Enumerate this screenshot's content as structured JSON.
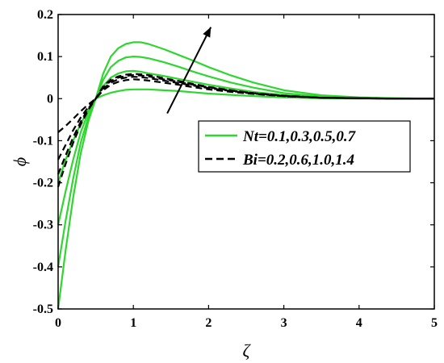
{
  "chart_data": {
    "type": "line",
    "title": "",
    "xlabel": "ζ",
    "ylabel": "ϕ",
    "xlim": [
      0,
      5
    ],
    "ylim": [
      -0.5,
      0.2
    ],
    "xticks": [
      "0",
      "1",
      "2",
      "3",
      "4",
      "5"
    ],
    "yticks": [
      "0.2",
      "0.1",
      "0",
      "-0.1",
      "-0.2",
      "-0.3",
      "-0.4",
      "-0.5"
    ],
    "grid": false,
    "legend_position": "middle-right",
    "legend": [
      {
        "label": "Nt=0.1,0.3,0.5,0.7",
        "color": "#2fd62f",
        "dash": "solid"
      },
      {
        "label": "Bi=0.2,0.6,1.0,1.4",
        "color": "#000000",
        "dash": "dashed"
      }
    ],
    "annotation": "arrow indicating increasing parameter direction",
    "series": [
      {
        "group": "Nt",
        "color": "#2fd62f",
        "dash": "solid",
        "x": [
          0,
          0.1,
          0.2,
          0.3,
          0.4,
          0.5,
          0.6,
          0.7,
          0.8,
          0.9,
          1.0,
          1.1,
          1.2,
          1.4,
          1.6,
          1.8,
          2.0,
          2.3,
          2.6,
          3.0,
          3.5,
          4.0,
          4.5,
          5.0
        ],
        "y": [
          -0.2,
          -0.145,
          -0.1,
          -0.06,
          -0.027,
          0,
          0.008,
          0.014,
          0.018,
          0.021,
          0.022,
          0.022,
          0.022,
          0.02,
          0.018,
          0.015,
          0.012,
          0.009,
          0.006,
          0.003,
          0.001,
          0.0,
          0.0,
          0
        ]
      },
      {
        "group": "Nt",
        "color": "#2fd62f",
        "dash": "solid",
        "x": [
          0,
          0.1,
          0.2,
          0.3,
          0.4,
          0.5,
          0.6,
          0.7,
          0.8,
          0.9,
          1.0,
          1.1,
          1.2,
          1.4,
          1.6,
          1.8,
          2.0,
          2.3,
          2.6,
          3.0,
          3.5,
          4.0,
          4.5,
          5.0
        ],
        "y": [
          -0.3,
          -0.22,
          -0.145,
          -0.08,
          -0.033,
          0,
          0.03,
          0.05,
          0.06,
          0.065,
          0.066,
          0.064,
          0.06,
          0.054,
          0.047,
          0.04,
          0.033,
          0.024,
          0.016,
          0.008,
          0.003,
          0.001,
          0.0,
          0
        ]
      },
      {
        "group": "Nt",
        "color": "#2fd62f",
        "dash": "solid",
        "x": [
          0,
          0.1,
          0.2,
          0.3,
          0.4,
          0.5,
          0.6,
          0.7,
          0.8,
          0.9,
          1.0,
          1.1,
          1.2,
          1.4,
          1.6,
          1.8,
          2.0,
          2.3,
          2.6,
          3.0,
          3.5,
          4.0,
          4.5,
          5.0
        ],
        "y": [
          -0.4,
          -0.29,
          -0.19,
          -0.105,
          -0.045,
          0,
          0.045,
          0.075,
          0.09,
          0.098,
          0.1,
          0.099,
          0.096,
          0.087,
          0.076,
          0.064,
          0.053,
          0.038,
          0.026,
          0.013,
          0.005,
          0.002,
          0.0,
          0
        ]
      },
      {
        "group": "Nt",
        "color": "#2fd62f",
        "dash": "solid",
        "x": [
          0,
          0.1,
          0.2,
          0.3,
          0.4,
          0.5,
          0.6,
          0.7,
          0.8,
          0.9,
          1.0,
          1.1,
          1.2,
          1.4,
          1.6,
          1.8,
          2.0,
          2.3,
          2.6,
          3.0,
          3.5,
          4.0,
          4.5,
          5.0
        ],
        "y": [
          -0.5,
          -0.36,
          -0.235,
          -0.13,
          -0.055,
          0,
          0.06,
          0.1,
          0.12,
          0.13,
          0.134,
          0.134,
          0.13,
          0.118,
          0.104,
          0.09,
          0.075,
          0.055,
          0.038,
          0.02,
          0.008,
          0.003,
          0.001,
          0
        ]
      },
      {
        "group": "Bi",
        "color": "#000000",
        "dash": "dashed",
        "x": [
          0,
          0.1,
          0.2,
          0.3,
          0.4,
          0.5,
          0.6,
          0.7,
          0.8,
          0.9,
          1.0,
          1.1,
          1.2,
          1.4,
          1.6,
          1.8,
          2.0,
          2.3,
          2.6,
          3.0,
          3.5,
          4.0,
          4.5,
          5.0
        ],
        "y": [
          -0.08,
          -0.065,
          -0.048,
          -0.03,
          -0.014,
          0,
          0.02,
          0.033,
          0.04,
          0.044,
          0.046,
          0.045,
          0.043,
          0.038,
          0.033,
          0.027,
          0.022,
          0.016,
          0.011,
          0.006,
          0.002,
          0.001,
          0.0,
          0
        ]
      },
      {
        "group": "Bi",
        "color": "#000000",
        "dash": "dashed",
        "x": [
          0,
          0.1,
          0.2,
          0.3,
          0.4,
          0.5,
          0.6,
          0.7,
          0.8,
          0.9,
          1.0,
          1.1,
          1.2,
          1.4,
          1.6,
          1.8,
          2.0,
          2.3,
          2.6,
          3.0,
          3.5,
          4.0,
          4.5,
          5.0
        ],
        "y": [
          -0.145,
          -0.11,
          -0.075,
          -0.045,
          -0.02,
          0,
          0.024,
          0.038,
          0.046,
          0.05,
          0.052,
          0.051,
          0.049,
          0.043,
          0.037,
          0.031,
          0.025,
          0.018,
          0.012,
          0.006,
          0.002,
          0.001,
          0.0,
          0
        ]
      },
      {
        "group": "Bi",
        "color": "#000000",
        "dash": "dashed",
        "x": [
          0,
          0.1,
          0.2,
          0.3,
          0.4,
          0.5,
          0.6,
          0.7,
          0.8,
          0.9,
          1.0,
          1.1,
          1.2,
          1.4,
          1.6,
          1.8,
          2.0,
          2.3,
          2.6,
          3.0,
          3.5,
          4.0,
          4.5,
          5.0
        ],
        "y": [
          -0.18,
          -0.135,
          -0.092,
          -0.055,
          -0.024,
          0,
          0.027,
          0.042,
          0.05,
          0.054,
          0.056,
          0.055,
          0.053,
          0.046,
          0.04,
          0.033,
          0.027,
          0.019,
          0.013,
          0.007,
          0.002,
          0.001,
          0.0,
          0
        ]
      },
      {
        "group": "Bi",
        "color": "#000000",
        "dash": "dashed",
        "x": [
          0,
          0.1,
          0.2,
          0.3,
          0.4,
          0.5,
          0.6,
          0.7,
          0.8,
          0.9,
          1.0,
          1.1,
          1.2,
          1.4,
          1.6,
          1.8,
          2.0,
          2.3,
          2.6,
          3.0,
          3.5,
          4.0,
          4.5,
          5.0
        ],
        "y": [
          -0.21,
          -0.155,
          -0.105,
          -0.062,
          -0.027,
          0,
          0.03,
          0.045,
          0.053,
          0.057,
          0.059,
          0.058,
          0.056,
          0.049,
          0.042,
          0.035,
          0.028,
          0.02,
          0.013,
          0.007,
          0.002,
          0.001,
          0.0,
          0
        ]
      }
    ]
  }
}
